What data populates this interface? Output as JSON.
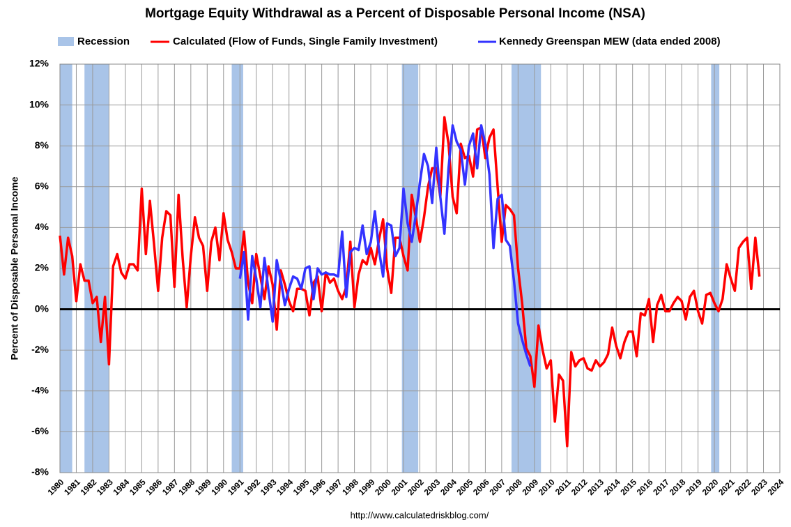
{
  "chart_data": {
    "type": "line",
    "title": "Mortgage Equity Withdrawal as a Percent of Disposable Personal Income (NSA)",
    "y_label": "Percent of Disposable Personal Income",
    "source": "http://www.calculatedriskblog.com/",
    "recession_label": "Recession",
    "recession_color": "#a9c4e8",
    "recessions": [
      [
        1980.0,
        1980.75
      ],
      [
        1981.5,
        1983.0
      ],
      [
        1990.5,
        1991.2
      ],
      [
        2000.9,
        2001.9
      ],
      [
        2007.6,
        2009.4
      ],
      [
        2019.8,
        2020.3
      ]
    ],
    "x": [
      1980,
      1980.25,
      1980.5,
      1980.75,
      1981,
      1981.25,
      1981.5,
      1981.75,
      1982,
      1982.25,
      1982.5,
      1982.75,
      1983,
      1983.25,
      1983.5,
      1983.75,
      1984,
      1984.25,
      1984.5,
      1984.75,
      1985,
      1985.25,
      1985.5,
      1985.75,
      1986,
      1986.25,
      1986.5,
      1986.75,
      1987,
      1987.25,
      1987.5,
      1987.75,
      1988,
      1988.25,
      1988.5,
      1988.75,
      1989,
      1989.25,
      1989.5,
      1989.75,
      1990,
      1990.25,
      1990.5,
      1990.75,
      1991,
      1991.25,
      1991.5,
      1991.75,
      1992,
      1992.25,
      1992.5,
      1992.75,
      1993,
      1993.25,
      1993.5,
      1993.75,
      1994,
      1994.25,
      1994.5,
      1994.75,
      1995,
      1995.25,
      1995.5,
      1995.75,
      1996,
      1996.25,
      1996.5,
      1996.75,
      1997,
      1997.25,
      1997.5,
      1997.75,
      1998,
      1998.25,
      1998.5,
      1998.75,
      1999,
      1999.25,
      1999.5,
      1999.75,
      2000,
      2000.25,
      2000.5,
      2000.75,
      2001,
      2001.25,
      2001.5,
      2001.75,
      2002,
      2002.25,
      2002.5,
      2002.75,
      2003,
      2003.25,
      2003.5,
      2003.75,
      2004,
      2004.25,
      2004.5,
      2004.75,
      2005,
      2005.25,
      2005.5,
      2005.75,
      2006,
      2006.25,
      2006.5,
      2006.75,
      2007,
      2007.25,
      2007.5,
      2007.75,
      2008,
      2008.25,
      2008.5,
      2008.75,
      2009,
      2009.25,
      2009.5,
      2009.75,
      2010,
      2010.25,
      2010.5,
      2010.75,
      2011,
      2011.25,
      2011.5,
      2011.75,
      2012,
      2012.25,
      2012.5,
      2012.75,
      2013,
      2013.25,
      2013.5,
      2013.75,
      2014,
      2014.25,
      2014.5,
      2014.75,
      2015,
      2015.25,
      2015.5,
      2015.75,
      2016,
      2016.25,
      2016.5,
      2016.75,
      2017,
      2017.25,
      2017.5,
      2017.75,
      2018,
      2018.25,
      2018.5,
      2018.75,
      2019,
      2019.25,
      2019.5,
      2019.75,
      2020,
      2020.25,
      2020.5,
      2020.75,
      2021,
      2021.25,
      2021.5,
      2021.75,
      2022,
      2022.25,
      2022.5,
      2022.75
    ],
    "series": [
      {
        "name": "Calculated (Flow of Funds, Single Family Investment)",
        "color": "#ff0000",
        "values": [
          3.6,
          1.7,
          3.5,
          2.6,
          0.4,
          2.2,
          1.4,
          1.4,
          0.3,
          0.6,
          -1.6,
          0.6,
          -2.7,
          2.1,
          2.7,
          1.8,
          1.5,
          2.2,
          2.2,
          1.9,
          5.9,
          2.7,
          5.3,
          3.2,
          0.9,
          3.5,
          4.8,
          4.6,
          1.1,
          5.6,
          2.5,
          0.1,
          2.6,
          4.5,
          3.5,
          3.1,
          0.9,
          3.3,
          4.0,
          2.4,
          4.7,
          3.4,
          2.8,
          2.0,
          2.0,
          3.8,
          1.3,
          0.3,
          2.7,
          1.6,
          0.5,
          2.1,
          1.2,
          -1.0,
          1.9,
          1.2,
          0.4,
          -0.1,
          1.0,
          1.0,
          0.9,
          -0.3,
          1.3,
          1.6,
          -0.1,
          1.8,
          1.3,
          1.5,
          0.9,
          0.5,
          1.1,
          3.3,
          0.1,
          1.7,
          2.4,
          2.2,
          3.0,
          2.2,
          3.4,
          4.4,
          2.0,
          0.8,
          3.5,
          3.5,
          2.6,
          1.9,
          5.6,
          4.5,
          3.3,
          4.5,
          6.0,
          6.9,
          6.9,
          5.5,
          9.4,
          8.1,
          5.5,
          4.7,
          8.1,
          7.4,
          7.5,
          6.5,
          8.8,
          8.9,
          7.4,
          8.4,
          8.8,
          6.0,
          3.3,
          5.1,
          4.9,
          4.6,
          2.0,
          0.3,
          -1.9,
          -2.3,
          -3.8,
          -0.8,
          -2.0,
          -2.9,
          -2.5,
          -5.5,
          -3.2,
          -3.5,
          -6.7,
          -2.1,
          -2.8,
          -2.5,
          -2.4,
          -2.9,
          -3.0,
          -2.5,
          -2.8,
          -2.6,
          -2.2,
          -0.9,
          -1.8,
          -2.4,
          -1.6,
          -1.1,
          -1.1,
          -2.3,
          -0.2,
          -0.3,
          0.5,
          -1.6,
          0.2,
          0.7,
          -0.1,
          -0.1,
          0.3,
          0.6,
          0.4,
          -0.5,
          0.6,
          0.9,
          -0.1,
          -0.7,
          0.7,
          0.8,
          0.3,
          -0.1,
          0.5,
          2.2,
          1.5,
          0.9,
          3.0,
          3.3,
          3.5,
          1.0,
          3.5,
          1.6
        ]
      },
      {
        "name": "Kennedy Greenspan MEW (data ended 2008)",
        "color": "#3333ff",
        "values": [
          null,
          null,
          null,
          null,
          null,
          null,
          null,
          null,
          null,
          null,
          null,
          null,
          null,
          null,
          null,
          null,
          null,
          null,
          null,
          null,
          null,
          null,
          null,
          null,
          null,
          null,
          null,
          null,
          null,
          null,
          null,
          null,
          null,
          null,
          null,
          null,
          null,
          null,
          null,
          null,
          null,
          null,
          null,
          null,
          1.5,
          2.8,
          -0.5,
          2.6,
          1.5,
          0.1,
          2.5,
          0.9,
          -0.6,
          2.4,
          1.4,
          0.2,
          1.0,
          1.6,
          1.5,
          1.0,
          2.0,
          2.1,
          0.5,
          2.0,
          1.7,
          1.8,
          1.7,
          1.7,
          1.6,
          3.8,
          0.6,
          2.8,
          3.0,
          2.9,
          4.1,
          2.7,
          3.3,
          4.8,
          2.9,
          1.6,
          4.2,
          4.1,
          2.6,
          3.0,
          5.9,
          4.2,
          3.3,
          4.6,
          6.2,
          7.6,
          7.0,
          5.2,
          7.9,
          5.5,
          3.7,
          6.9,
          9.0,
          8.2,
          7.8,
          6.1,
          8.0,
          8.6,
          6.9,
          9.0,
          8.1,
          6.6,
          3.0,
          5.4,
          5.6,
          3.4,
          3.1,
          1.4,
          -0.7,
          -1.5,
          -2.2,
          -2.8,
          null,
          null,
          null,
          null,
          null,
          null,
          null,
          null,
          null,
          null,
          null,
          null,
          null,
          null,
          null,
          null,
          null,
          null,
          null,
          null,
          null,
          null,
          null,
          null,
          null,
          null,
          null,
          null,
          null,
          null,
          null,
          null,
          null,
          null,
          null,
          null,
          null,
          null,
          null,
          null,
          null,
          null,
          null,
          null,
          null,
          null,
          null,
          null,
          null,
          null,
          null,
          null,
          null,
          null,
          null,
          null
        ]
      }
    ],
    "xlim": [
      1980,
      2024
    ],
    "xticks": [
      1980,
      1981,
      1982,
      1983,
      1984,
      1985,
      1986,
      1987,
      1988,
      1989,
      1990,
      1991,
      1992,
      1993,
      1994,
      1995,
      1996,
      1997,
      1998,
      1999,
      2000,
      2001,
      2002,
      2003,
      2004,
      2005,
      2006,
      2007,
      2008,
      2009,
      2010,
      2011,
      2012,
      2013,
      2014,
      2015,
      2016,
      2017,
      2018,
      2019,
      2020,
      2021,
      2022,
      2023,
      2024
    ],
    "ylim": [
      -8,
      12
    ],
    "yticks": [
      {
        "value": -8,
        "label": "-8%"
      },
      {
        "value": -6,
        "label": "-6%"
      },
      {
        "value": -4,
        "label": "-4%"
      },
      {
        "value": -2,
        "label": "-2%"
      },
      {
        "value": 0,
        "label": "0%"
      },
      {
        "value": 2,
        "label": "2%"
      },
      {
        "value": 4,
        "label": "4%"
      },
      {
        "value": 6,
        "label": "6%"
      },
      {
        "value": 8,
        "label": "8%"
      },
      {
        "value": 10,
        "label": "10%"
      },
      {
        "value": 12,
        "label": "12%"
      }
    ],
    "grid": true
  }
}
